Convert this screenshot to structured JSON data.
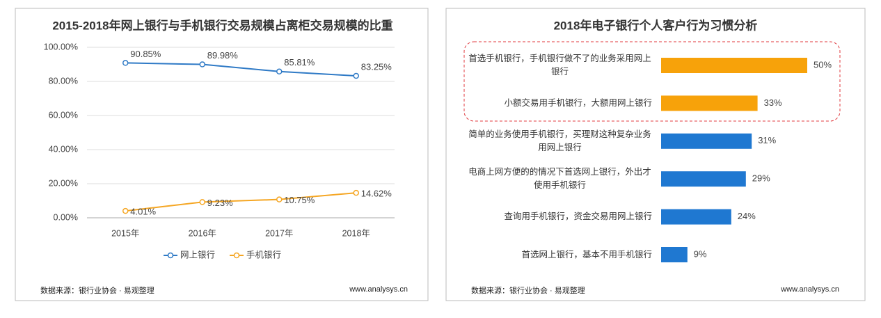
{
  "chart_data": [
    {
      "type": "line",
      "title": "2015-2018年网上银行与手机银行交易规模占离柜交易规模的比重",
      "categories": [
        "2015年",
        "2016年",
        "2017年",
        "2018年"
      ],
      "series": [
        {
          "name": "网上银行",
          "color": "#2f7ac6",
          "values": [
            90.85,
            89.98,
            85.81,
            83.25
          ],
          "value_labels": [
            "90.85%",
            "89.98%",
            "85.81%",
            "83.25%"
          ]
        },
        {
          "name": "手机银行",
          "color": "#f5a623",
          "values": [
            4.01,
            9.23,
            10.75,
            14.62
          ],
          "value_labels": [
            "4.01%",
            "9.23%",
            "10.75%",
            "14.62%"
          ]
        }
      ],
      "ylim": [
        0,
        100
      ],
      "yticks": [
        {
          "value": 0,
          "label": "0.00%"
        },
        {
          "value": 20,
          "label": "20.00%"
        },
        {
          "value": 40,
          "label": "40.00%"
        },
        {
          "value": 60,
          "label": "60.00%"
        },
        {
          "value": 80,
          "label": "80.00%"
        },
        {
          "value": 100,
          "label": "100.00%"
        }
      ],
      "grid": true,
      "legend": "bottom",
      "source": "数据来源：银行业协会 · 易观整理",
      "url": "www.analysys.cn"
    },
    {
      "type": "barh",
      "title": "2018年电子银行个人客户行为习惯分析",
      "categories": [
        "首选手机银行，手机银行做不了的业务采用网上银行",
        "小额交易用手机银行，大额用网上银行",
        "简单的业务使用手机银行，买理财这种复杂业务用网上银行",
        "电商上网方便的的情况下首选网上银行，外出才使用手机银行",
        "查询用手机银行，资金交易用网上银行",
        "首选网上银行，基本不用手机银行"
      ],
      "values": [
        50,
        33,
        31,
        29,
        24,
        9
      ],
      "value_labels": [
        "50%",
        "33%",
        "31%",
        "29%",
        "24%",
        "9%"
      ],
      "colors": [
        "#f7a20a",
        "#f7a20a",
        "#1f78d1",
        "#1f78d1",
        "#1f78d1",
        "#1f78d1"
      ],
      "source": "数据来源：银行业协会 · 易观整理",
      "url": "www.analysys.cn"
    }
  ]
}
